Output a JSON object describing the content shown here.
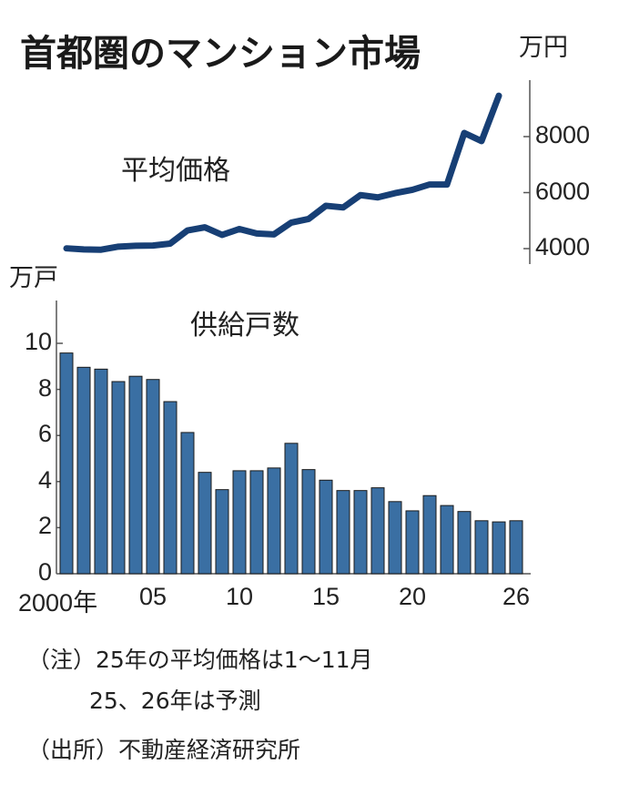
{
  "title": "首都圏のマンション市場",
  "price_chart": {
    "unit": "万円",
    "label": "平均価格",
    "yticks": [
      4000,
      6000,
      8000
    ],
    "color": "#173f75"
  },
  "supply_chart": {
    "unit": "万戸",
    "label": "供給戸数",
    "yticks": [
      0,
      2,
      4,
      6,
      8,
      10
    ],
    "bar_color": "#3a6fa3",
    "bar_stroke": "#1a1a1a"
  },
  "x_ticks": [
    {
      "year": 2000,
      "label": "2000年"
    },
    {
      "year": 2005,
      "label": "05"
    },
    {
      "year": 2010,
      "label": "10"
    },
    {
      "year": 2015,
      "label": "15"
    },
    {
      "year": 2020,
      "label": "20"
    },
    {
      "year": 2026,
      "label": "26"
    }
  ],
  "notes": {
    "note_line1": "（注）25年の平均価格は1～11月",
    "note_line2": "25、26年は予測",
    "source": "（出所）不動産経済研究所"
  },
  "chart_data": [
    {
      "type": "line",
      "title": "平均価格",
      "ylabel": "万円",
      "x": [
        2000,
        2001,
        2002,
        2003,
        2004,
        2005,
        2006,
        2007,
        2008,
        2009,
        2010,
        2011,
        2012,
        2013,
        2014,
        2015,
        2016,
        2017,
        2018,
        2019,
        2020,
        2021,
        2022,
        2023,
        2024,
        2025
      ],
      "values": [
        4010,
        3970,
        3960,
        4070,
        4100,
        4110,
        4180,
        4650,
        4760,
        4490,
        4700,
        4540,
        4510,
        4930,
        5060,
        5530,
        5470,
        5910,
        5830,
        5980,
        6100,
        6290,
        6290,
        8130,
        7840,
        9460
      ],
      "yticks": [
        4000,
        6000,
        8000
      ],
      "ylim": [
        3800,
        9700
      ],
      "grid": false
    },
    {
      "type": "bar",
      "title": "供給戸数",
      "ylabel": "万戸",
      "categories": [
        2000,
        2001,
        2002,
        2003,
        2004,
        2005,
        2006,
        2007,
        2008,
        2009,
        2010,
        2011,
        2012,
        2013,
        2014,
        2015,
        2016,
        2017,
        2018,
        2019,
        2020,
        2021,
        2022,
        2023,
        2024,
        2025,
        2026
      ],
      "values": [
        9.58,
        8.96,
        8.88,
        8.34,
        8.57,
        8.43,
        7.47,
        6.13,
        4.4,
        3.65,
        4.47,
        4.47,
        4.59,
        5.66,
        4.52,
        4.06,
        3.61,
        3.61,
        3.73,
        3.13,
        2.73,
        3.39,
        2.96,
        2.7,
        2.3,
        2.25,
        2.3
      ],
      "yticks": [
        0,
        2,
        4,
        6,
        8,
        10
      ],
      "ylim": [
        0,
        11.6
      ],
      "xtick_labels": [
        "2000年",
        "05",
        "10",
        "15",
        "20",
        "26"
      ],
      "grid": false
    }
  ]
}
